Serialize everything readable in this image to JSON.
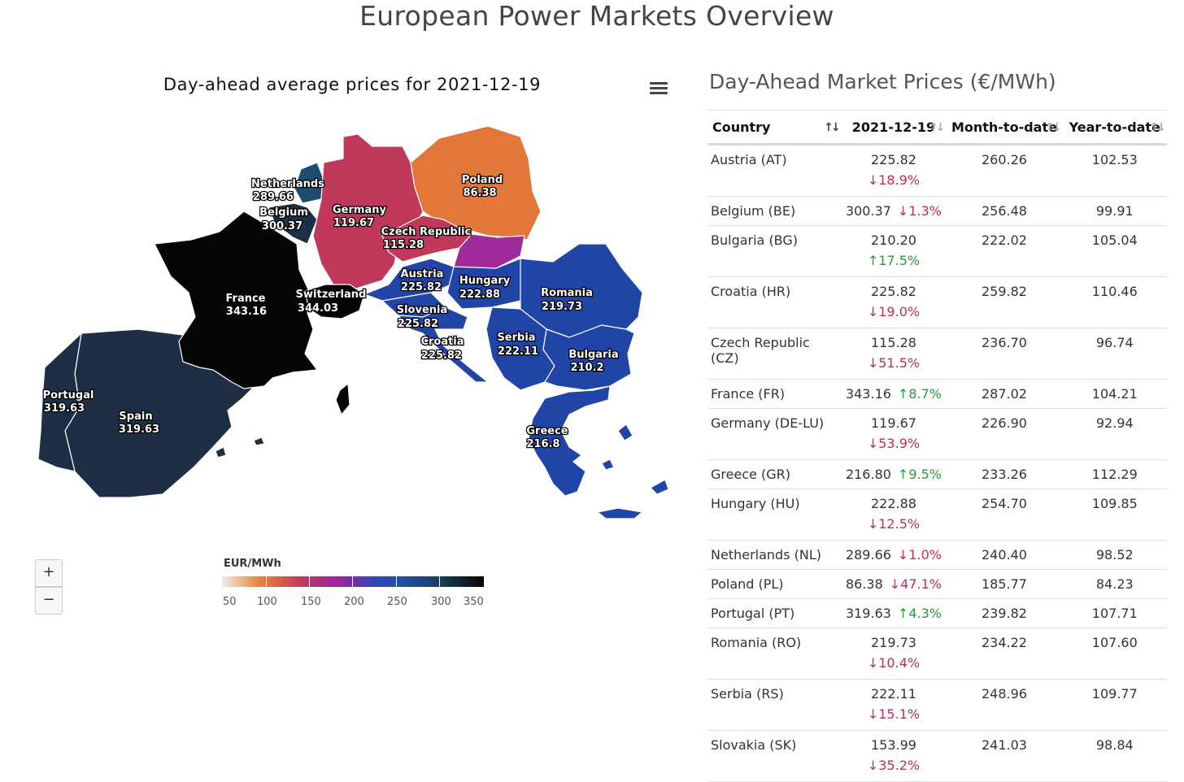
{
  "page": {
    "title": "European Power Markets Overview"
  },
  "map": {
    "title": "Day-ahead average prices for 2021-12-19",
    "menu_icon": "hamburger-menu-icon",
    "labels": [
      {
        "name": "Netherlands",
        "value": "289.66"
      },
      {
        "name": "Belgium",
        "value": "300.37"
      },
      {
        "name": "Germany",
        "value": "119.67"
      },
      {
        "name": "Poland",
        "value": "86.38"
      },
      {
        "name": "Czech Republic",
        "value": "115.28"
      },
      {
        "name": "France",
        "value": "343.16"
      },
      {
        "name": "Switzerland",
        "value": "344.03"
      },
      {
        "name": "Austria",
        "value": "225.82"
      },
      {
        "name": "Hungary",
        "value": "222.88"
      },
      {
        "name": "Romania",
        "value": "219.73"
      },
      {
        "name": "Slovenia",
        "value": "225.82"
      },
      {
        "name": "Croatia",
        "value": "225.82"
      },
      {
        "name": "Serbia",
        "value": "222.11"
      },
      {
        "name": "Bulgaria",
        "value": "210.2"
      },
      {
        "name": "Portugal",
        "value": "319.63"
      },
      {
        "name": "Spain",
        "value": "319.63"
      },
      {
        "name": "Greece",
        "value": "216.8"
      }
    ],
    "zoom_in": "+",
    "zoom_out": "−",
    "legend": {
      "title": "EUR/MWh",
      "ticks": [
        "50",
        "100",
        "150",
        "200",
        "250",
        "300",
        "350"
      ]
    },
    "colors": {
      "poland": "#e37738",
      "germany": "#c0385a",
      "slovakia": "#a12a9a",
      "blue": "#2145a6",
      "dark_navy": "#1e2f45",
      "netherlands": "#1c4c6e",
      "black": "#050505"
    }
  },
  "table": {
    "title": "Day-Ahead Market Prices (€/MWh)",
    "headers": [
      "Country",
      "2021-12-19",
      "Month-to-date",
      "Year-to-date"
    ],
    "rows": [
      {
        "country": "Austria (AT)",
        "price": "225.82",
        "change": "↓18.9%",
        "dir": "down",
        "mtd": "260.26",
        "ytd": "102.53",
        "wrap": true
      },
      {
        "country": "Belgium (BE)",
        "price": "300.37",
        "change": "↓1.3%",
        "dir": "down",
        "mtd": "256.48",
        "ytd": "99.91",
        "wrap": false
      },
      {
        "country": "Bulgaria (BG)",
        "price": "210.20",
        "change": "↑17.5%",
        "dir": "up",
        "mtd": "222.02",
        "ytd": "105.04",
        "wrap": true
      },
      {
        "country": "Croatia (HR)",
        "price": "225.82",
        "change": "↓19.0%",
        "dir": "down",
        "mtd": "259.82",
        "ytd": "110.46",
        "wrap": true
      },
      {
        "country": "Czech Republic (CZ)",
        "price": "115.28",
        "change": "↓51.5%",
        "dir": "down",
        "mtd": "236.70",
        "ytd": "96.74",
        "wrap": true
      },
      {
        "country": "France (FR)",
        "price": "343.16",
        "change": "↑8.7%",
        "dir": "up",
        "mtd": "287.02",
        "ytd": "104.21",
        "wrap": false
      },
      {
        "country": "Germany (DE-LU)",
        "price": "119.67",
        "change": "↓53.9%",
        "dir": "down",
        "mtd": "226.90",
        "ytd": "92.94",
        "wrap": true
      },
      {
        "country": "Greece (GR)",
        "price": "216.80",
        "change": "↑9.5%",
        "dir": "up",
        "mtd": "233.26",
        "ytd": "112.29",
        "wrap": false
      },
      {
        "country": "Hungary (HU)",
        "price": "222.88",
        "change": "↓12.5%",
        "dir": "down",
        "mtd": "254.70",
        "ytd": "109.85",
        "wrap": true
      },
      {
        "country": "Netherlands (NL)",
        "price": "289.66",
        "change": "↓1.0%",
        "dir": "down",
        "mtd": "240.40",
        "ytd": "98.52",
        "wrap": false
      },
      {
        "country": "Poland (PL)",
        "price": "86.38",
        "change": "↓47.1%",
        "dir": "down",
        "mtd": "185.77",
        "ytd": "84.23",
        "wrap": false
      },
      {
        "country": "Portugal (PT)",
        "price": "319.63",
        "change": "↑4.3%",
        "dir": "up",
        "mtd": "239.82",
        "ytd": "107.71",
        "wrap": false
      },
      {
        "country": "Romania (RO)",
        "price": "219.73",
        "change": "↓10.4%",
        "dir": "down",
        "mtd": "234.22",
        "ytd": "107.60",
        "wrap": true
      },
      {
        "country": "Serbia (RS)",
        "price": "222.11",
        "change": "↓15.1%",
        "dir": "down",
        "mtd": "248.96",
        "ytd": "109.77",
        "wrap": true
      },
      {
        "country": "Slovakia (SK)",
        "price": "153.99",
        "change": "↓35.2%",
        "dir": "down",
        "mtd": "241.03",
        "ytd": "98.84",
        "wrap": true
      }
    ]
  }
}
